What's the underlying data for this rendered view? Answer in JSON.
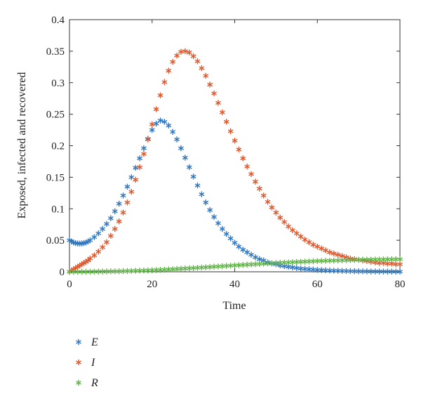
{
  "chart_data": {
    "type": "scatter",
    "xlabel": "Time",
    "ylabel": "Exposed, infected and recovered",
    "xlim": [
      0,
      80
    ],
    "ylim": [
      0,
      0.4
    ],
    "xticks": [
      "0",
      "20",
      "40",
      "60",
      "80"
    ],
    "yticks": [
      "0",
      "0.05",
      "0.1",
      "0.15",
      "0.2",
      "0.25",
      "0.3",
      "0.35",
      "0.4"
    ],
    "legend_position": "bottom-left",
    "grid": false,
    "marker": "asterisk",
    "series": [
      {
        "name": "E",
        "color": "#2f77c0",
        "points": [
          [
            0,
            0.05
          ],
          [
            0.5,
            0.048
          ],
          [
            1,
            0.0465
          ],
          [
            1.5,
            0.0455
          ],
          [
            2,
            0.045
          ],
          [
            2.5,
            0.0448
          ],
          [
            3,
            0.0449
          ],
          [
            3.5,
            0.0455
          ],
          [
            4,
            0.0465
          ],
          [
            4.5,
            0.048
          ],
          [
            5,
            0.05
          ],
          [
            6,
            0.055
          ],
          [
            7,
            0.061
          ],
          [
            8,
            0.068
          ],
          [
            9,
            0.076
          ],
          [
            10,
            0.085
          ],
          [
            11,
            0.096
          ],
          [
            12,
            0.108
          ],
          [
            13,
            0.121
          ],
          [
            14,
            0.135
          ],
          [
            15,
            0.15
          ],
          [
            16,
            0.165
          ],
          [
            17,
            0.18
          ],
          [
            18,
            0.196
          ],
          [
            19,
            0.211
          ],
          [
            20,
            0.225
          ],
          [
            21,
            0.235
          ],
          [
            22,
            0.24
          ],
          [
            23,
            0.238
          ],
          [
            24,
            0.232
          ],
          [
            25,
            0.222
          ],
          [
            26,
            0.21
          ],
          [
            27,
            0.196
          ],
          [
            28,
            0.181
          ],
          [
            29,
            0.166
          ],
          [
            30,
            0.151
          ],
          [
            31,
            0.137
          ],
          [
            32,
            0.123
          ],
          [
            33,
            0.11
          ],
          [
            34,
            0.098
          ],
          [
            35,
            0.087
          ],
          [
            36,
            0.077
          ],
          [
            37,
            0.068
          ],
          [
            38,
            0.06
          ],
          [
            39,
            0.053
          ],
          [
            40,
            0.046
          ],
          [
            41,
            0.04
          ],
          [
            42,
            0.035
          ],
          [
            43,
            0.031
          ],
          [
            44,
            0.027
          ],
          [
            45,
            0.023
          ],
          [
            46,
            0.02
          ],
          [
            47,
            0.018
          ],
          [
            48,
            0.015
          ],
          [
            49,
            0.013
          ],
          [
            50,
            0.012
          ],
          [
            51,
            0.01
          ],
          [
            52,
            0.009
          ],
          [
            53,
            0.008
          ],
          [
            54,
            0.007
          ],
          [
            55,
            0.006
          ],
          [
            56,
            0.005
          ],
          [
            57,
            0.0045
          ],
          [
            58,
            0.004
          ],
          [
            59,
            0.0035
          ],
          [
            60,
            0.003
          ],
          [
            61,
            0.0027
          ],
          [
            62,
            0.0024
          ],
          [
            63,
            0.0021
          ],
          [
            64,
            0.0018
          ],
          [
            65,
            0.0016
          ],
          [
            66,
            0.0014
          ],
          [
            67,
            0.0012
          ],
          [
            68,
            0.001
          ],
          [
            69,
            0.0009
          ],
          [
            70,
            0.0008
          ],
          [
            71,
            0.0007
          ],
          [
            72,
            0.0006
          ],
          [
            73,
            0.0005
          ],
          [
            74,
            0.0005
          ],
          [
            75,
            0.0004
          ],
          [
            76,
            0.0004
          ],
          [
            77,
            0.0003
          ],
          [
            78,
            0.0003
          ],
          [
            79,
            0.0002
          ],
          [
            80,
            0.0002
          ]
        ]
      },
      {
        "name": "I",
        "color": "#e0562b",
        "points": [
          [
            0,
            0
          ],
          [
            0.5,
            0.002
          ],
          [
            1,
            0.004
          ],
          [
            1.5,
            0.006
          ],
          [
            2,
            0.008
          ],
          [
            2.5,
            0.01
          ],
          [
            3,
            0.012
          ],
          [
            3.5,
            0.014
          ],
          [
            4,
            0.016
          ],
          [
            4.5,
            0.018
          ],
          [
            5,
            0.021
          ],
          [
            6,
            0.026
          ],
          [
            7,
            0.032
          ],
          [
            8,
            0.039
          ],
          [
            9,
            0.047
          ],
          [
            10,
            0.057
          ],
          [
            11,
            0.068
          ],
          [
            12,
            0.08
          ],
          [
            13,
            0.094
          ],
          [
            14,
            0.11
          ],
          [
            15,
            0.127
          ],
          [
            16,
            0.146
          ],
          [
            17,
            0.166
          ],
          [
            18,
            0.187
          ],
          [
            19,
            0.21
          ],
          [
            20,
            0.234
          ],
          [
            21,
            0.258
          ],
          [
            22,
            0.28
          ],
          [
            23,
            0.301
          ],
          [
            24,
            0.319
          ],
          [
            25,
            0.333
          ],
          [
            26,
            0.343
          ],
          [
            27,
            0.349
          ],
          [
            28,
            0.35
          ],
          [
            29,
            0.348
          ],
          [
            30,
            0.342
          ],
          [
            31,
            0.334
          ],
          [
            32,
            0.323
          ],
          [
            33,
            0.311
          ],
          [
            34,
            0.297
          ],
          [
            35,
            0.283
          ],
          [
            36,
            0.268
          ],
          [
            37,
            0.253
          ],
          [
            38,
            0.238
          ],
          [
            39,
            0.223
          ],
          [
            40,
            0.208
          ],
          [
            41,
            0.194
          ],
          [
            42,
            0.18
          ],
          [
            43,
            0.167
          ],
          [
            44,
            0.155
          ],
          [
            45,
            0.143
          ],
          [
            46,
            0.132
          ],
          [
            47,
            0.121
          ],
          [
            48,
            0.111
          ],
          [
            49,
            0.102
          ],
          [
            50,
            0.094
          ],
          [
            51,
            0.086
          ],
          [
            52,
            0.079
          ],
          [
            53,
            0.072
          ],
          [
            54,
            0.066
          ],
          [
            55,
            0.061
          ],
          [
            56,
            0.056
          ],
          [
            57,
            0.051
          ],
          [
            58,
            0.047
          ],
          [
            59,
            0.043
          ],
          [
            60,
            0.04
          ],
          [
            61,
            0.037
          ],
          [
            62,
            0.034
          ],
          [
            63,
            0.031
          ],
          [
            64,
            0.029
          ],
          [
            65,
            0.027
          ],
          [
            66,
            0.025
          ],
          [
            67,
            0.023
          ],
          [
            68,
            0.021
          ],
          [
            69,
            0.02
          ],
          [
            70,
            0.019
          ],
          [
            71,
            0.018
          ],
          [
            72,
            0.017
          ],
          [
            73,
            0.016
          ],
          [
            74,
            0.015
          ],
          [
            75,
            0.014
          ],
          [
            76,
            0.014
          ],
          [
            77,
            0.013
          ],
          [
            78,
            0.013
          ],
          [
            79,
            0.012
          ],
          [
            80,
            0.012
          ]
        ]
      },
      {
        "name": "R",
        "color": "#5fb246",
        "points": [
          [
            0,
            0
          ],
          [
            1,
            0
          ],
          [
            2,
            0
          ],
          [
            3,
            0
          ],
          [
            4,
            0
          ],
          [
            5,
            0.0001
          ],
          [
            6,
            0.0002
          ],
          [
            7,
            0.0003
          ],
          [
            8,
            0.0004
          ],
          [
            9,
            0.0005
          ],
          [
            10,
            0.0006
          ],
          [
            11,
            0.0007
          ],
          [
            12,
            0.0008
          ],
          [
            13,
            0.001
          ],
          [
            14,
            0.0012
          ],
          [
            15,
            0.0014
          ],
          [
            16,
            0.0016
          ],
          [
            17,
            0.0018
          ],
          [
            18,
            0.002
          ],
          [
            19,
            0.0022
          ],
          [
            20,
            0.0025
          ],
          [
            21,
            0.0028
          ],
          [
            22,
            0.0031
          ],
          [
            23,
            0.0034
          ],
          [
            24,
            0.0037
          ],
          [
            25,
            0.004
          ],
          [
            26,
            0.0044
          ],
          [
            27,
            0.0048
          ],
          [
            28,
            0.0052
          ],
          [
            29,
            0.0056
          ],
          [
            30,
            0.006
          ],
          [
            31,
            0.0064
          ],
          [
            32,
            0.0068
          ],
          [
            33,
            0.0072
          ],
          [
            34,
            0.0076
          ],
          [
            35,
            0.0081
          ],
          [
            36,
            0.0085
          ],
          [
            37,
            0.0089
          ],
          [
            38,
            0.0093
          ],
          [
            39,
            0.0097
          ],
          [
            40,
            0.0101
          ],
          [
            41,
            0.0105
          ],
          [
            42,
            0.0109
          ],
          [
            43,
            0.0113
          ],
          [
            44,
            0.0117
          ],
          [
            45,
            0.0121
          ],
          [
            46,
            0.0125
          ],
          [
            47,
            0.0129
          ],
          [
            48,
            0.0133
          ],
          [
            49,
            0.0136
          ],
          [
            50,
            0.014
          ],
          [
            51,
            0.0143
          ],
          [
            52,
            0.0146
          ],
          [
            53,
            0.0149
          ],
          [
            54,
            0.0152
          ],
          [
            55,
            0.0155
          ],
          [
            56,
            0.0158
          ],
          [
            57,
            0.0161
          ],
          [
            58,
            0.0164
          ],
          [
            59,
            0.0167
          ],
          [
            60,
            0.017
          ],
          [
            61,
            0.0172
          ],
          [
            62,
            0.0174
          ],
          [
            63,
            0.0176
          ],
          [
            64,
            0.0178
          ],
          [
            65,
            0.018
          ],
          [
            66,
            0.0182
          ],
          [
            67,
            0.0184
          ],
          [
            68,
            0.0186
          ],
          [
            69,
            0.0188
          ],
          [
            70,
            0.019
          ],
          [
            71,
            0.0191
          ],
          [
            72,
            0.0192
          ],
          [
            73,
            0.0193
          ],
          [
            74,
            0.0194
          ],
          [
            75,
            0.0195
          ],
          [
            76,
            0.0196
          ],
          [
            77,
            0.0197
          ],
          [
            78,
            0.0198
          ],
          [
            79,
            0.0199
          ],
          [
            80,
            0.02
          ]
        ]
      }
    ]
  }
}
